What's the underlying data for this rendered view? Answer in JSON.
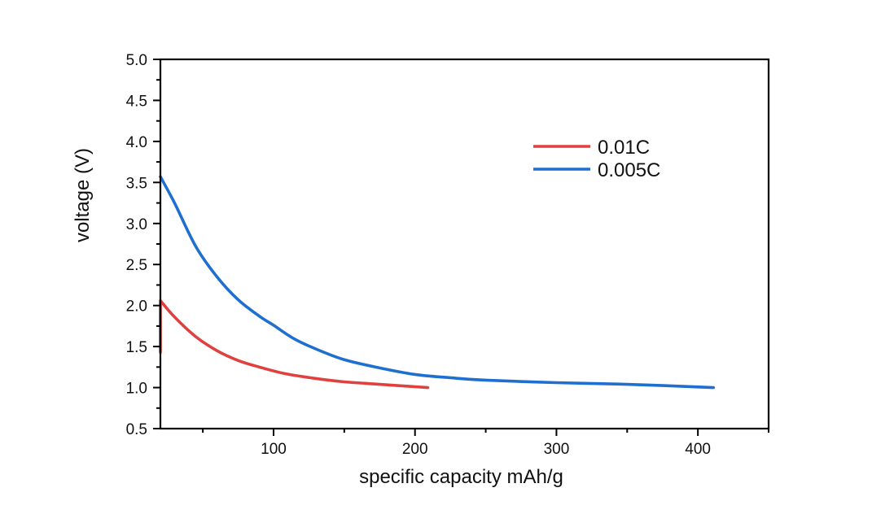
{
  "chart_data": {
    "type": "line",
    "title": "",
    "xlabel": "specific capacity mAh/g",
    "ylabel": "voltage (V)",
    "xlim": [
      20,
      450
    ],
    "ylim": [
      0.5,
      5.0
    ],
    "x_ticks": [
      100,
      200,
      300,
      400
    ],
    "x_tick_labels": [
      "100",
      "200",
      "300",
      "400"
    ],
    "x_minor_ticks": [
      50,
      150,
      250,
      350,
      450
    ],
    "y_ticks": [
      0.5,
      1.0,
      1.5,
      2.0,
      2.5,
      3.0,
      3.5,
      4.0,
      4.5,
      5.0
    ],
    "y_tick_labels": [
      "0.5",
      "1.0",
      "1.5",
      "2.0",
      "2.5",
      "3.0",
      "3.5",
      "4.0",
      "4.5",
      "5.0"
    ],
    "grid": false,
    "legend_position": "top-right",
    "series": [
      {
        "name": "0.01C",
        "color": "#e0413f",
        "x": [
          20,
          20,
          30,
          45,
          60,
          75,
          90,
          108,
          130,
          150,
          175,
          209
        ],
        "y": [
          1.43,
          2.06,
          1.86,
          1.62,
          1.45,
          1.33,
          1.25,
          1.17,
          1.11,
          1.07,
          1.04,
          1.0
        ]
      },
      {
        "name": "0.005C",
        "color": "#1f6fd1",
        "x": [
          20,
          30,
          45,
          60,
          75,
          90,
          100,
          114,
          130,
          150,
          175,
          200,
          225,
          250,
          300,
          350,
          411
        ],
        "y": [
          3.57,
          3.25,
          2.72,
          2.35,
          2.07,
          1.87,
          1.76,
          1.6,
          1.47,
          1.34,
          1.24,
          1.16,
          1.12,
          1.09,
          1.06,
          1.04,
          1.0
        ]
      }
    ]
  }
}
